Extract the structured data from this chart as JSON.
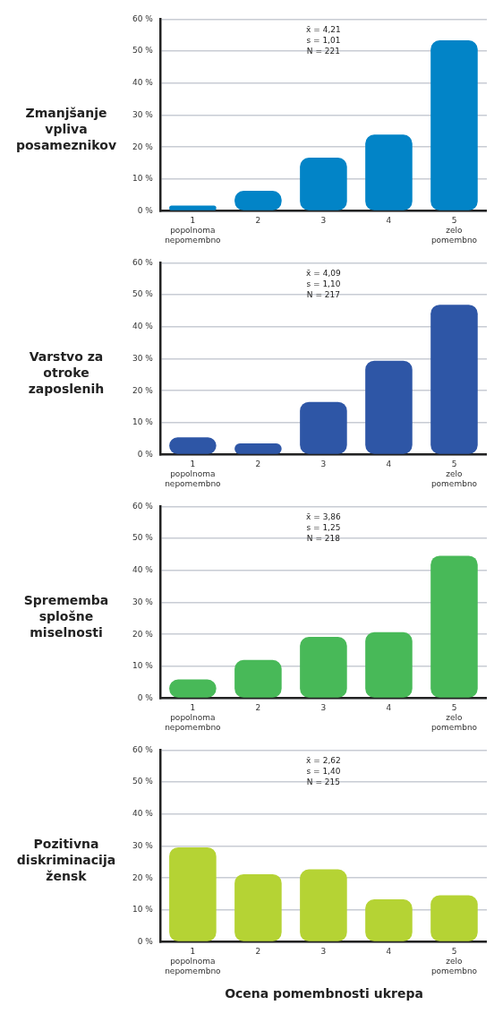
{
  "chart_data": [
    {
      "type": "bar",
      "title": "Zmanjšanje vpliva posameznikov",
      "categories": [
        "1\npopolnoma\nnepomembno",
        "2",
        "3",
        "4",
        "5\nzelo\npomembno"
      ],
      "values": [
        1.7,
        6.3,
        16.7,
        23.9,
        53.4
      ],
      "color": "#0284c7",
      "ylim": [
        0,
        60
      ],
      "yticks": [
        {
          "value": 0,
          "label": "0 %"
        },
        {
          "value": 10,
          "label": "10 %"
        },
        {
          "value": 20,
          "label": "20 %"
        },
        {
          "value": 30,
          "label": "30 %"
        },
        {
          "value": 40,
          "label": "40 %"
        },
        {
          "value": 50,
          "label": "50 %"
        },
        {
          "value": 60,
          "label": "60 %"
        }
      ],
      "grid": "y",
      "annotations": [
        "x̄ = 4,21",
        "s = 1,01",
        "N = 221"
      ]
    },
    {
      "type": "bar",
      "title": "Varstvo za otroke zaposlenih",
      "categories": [
        "1\npopolnoma\nnepomembno",
        "2",
        "3",
        "4",
        "5\nzelo\npomembno"
      ],
      "values": [
        5.4,
        3.5,
        16.5,
        29.4,
        46.9
      ],
      "color": "#2e56a6",
      "ylim": [
        0,
        60
      ],
      "yticks": [
        {
          "value": 0,
          "label": "0 %"
        },
        {
          "value": 10,
          "label": "10 %"
        },
        {
          "value": 20,
          "label": "20 %"
        },
        {
          "value": 30,
          "label": "30 %"
        },
        {
          "value": 40,
          "label": "40 %"
        },
        {
          "value": 50,
          "label": "50 %"
        },
        {
          "value": 60,
          "label": "60 %"
        }
      ],
      "grid": "y",
      "annotations": [
        "x̄ = 4,09",
        "s = 1,10",
        "N = 217"
      ]
    },
    {
      "type": "bar",
      "title": "Sprememba splošne miselnosti",
      "categories": [
        "1\npopolnoma\nnepomembno",
        "2",
        "3",
        "4",
        "5\nzelo\npomembno"
      ],
      "values": [
        5.9,
        12.0,
        19.2,
        20.7,
        44.6
      ],
      "color": "#48b958",
      "ylim": [
        0,
        60
      ],
      "yticks": [
        {
          "value": 0,
          "label": "0 %"
        },
        {
          "value": 10,
          "label": "10 %"
        },
        {
          "value": 20,
          "label": "20 %"
        },
        {
          "value": 30,
          "label": "30 %"
        },
        {
          "value": 40,
          "label": "40 %"
        },
        {
          "value": 50,
          "label": "50 %"
        },
        {
          "value": 60,
          "label": "60 %"
        }
      ],
      "grid": "y",
      "annotations": [
        "x̄ = 3,86",
        "s = 1,25",
        "N = 218"
      ]
    },
    {
      "type": "bar",
      "title": "Pozitivna diskriminacija žensk",
      "xlabel": "Ocena pomembnosti ukrepa",
      "categories": [
        "1\npopolnoma\nnepomembno",
        "2",
        "3",
        "4",
        "5\nzelo\npomembno"
      ],
      "values": [
        29.6,
        21.2,
        22.7,
        13.3,
        14.6
      ],
      "color": "#b5d334",
      "ylim": [
        0,
        60
      ],
      "yticks": [
        {
          "value": 0,
          "label": "0 %"
        },
        {
          "value": 10,
          "label": "10 %"
        },
        {
          "value": 20,
          "label": "20 %"
        },
        {
          "value": 30,
          "label": "30 %"
        },
        {
          "value": 40,
          "label": "40 %"
        },
        {
          "value": 50,
          "label": "50 %"
        },
        {
          "value": 60,
          "label": "60 %"
        }
      ],
      "grid": "y",
      "annotations": [
        "x̄ = 2,62",
        "s = 1,40",
        "N = 215"
      ]
    }
  ]
}
